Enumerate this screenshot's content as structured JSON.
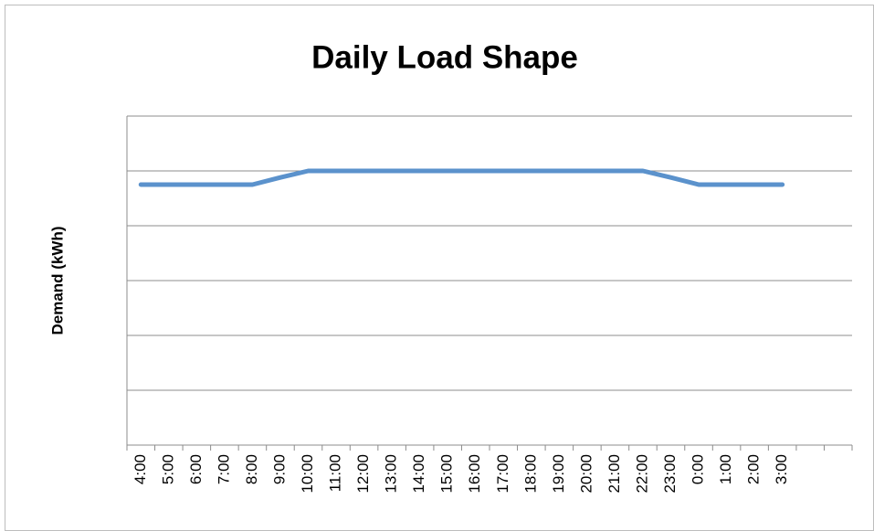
{
  "chart_data": {
    "type": "line",
    "title": "Daily Load Shape",
    "y_label": "Demand (kWh)",
    "categories": [
      "4:00",
      "5:00",
      "6:00",
      "7:00",
      "8:00",
      "9:00",
      "10:00",
      "11:00",
      "12:00",
      "13:00",
      "14:00",
      "15:00",
      "16:00",
      "17:00",
      "18:00",
      "19:00",
      "20:00",
      "21:00",
      "22:00",
      "23:00",
      "0:00",
      "1:00",
      "2:00",
      "3:00",
      null,
      null
    ],
    "series": [
      {
        "name": "Demand",
        "color": "#5b92cc",
        "values": [
          4.75,
          4.75,
          4.75,
          4.75,
          4.75,
          4.88,
          5,
          5,
          5,
          5,
          5,
          5,
          5,
          5,
          5,
          5,
          5,
          5,
          5,
          4.88,
          4.75,
          4.75,
          4.75,
          4.75,
          null,
          null
        ]
      }
    ],
    "ylim": [
      0,
      6
    ],
    "yticks": [
      0,
      1,
      2,
      3,
      4,
      5,
      6
    ],
    "grid": true,
    "legend": false
  }
}
